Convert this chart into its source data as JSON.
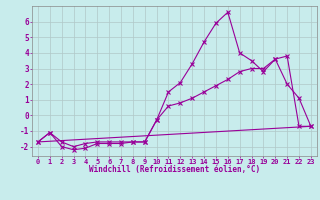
{
  "xlabel": "Windchill (Refroidissement éolien,°C)",
  "background_color": "#c8ecec",
  "grid_color": "#b0c8c8",
  "line_color": "#990099",
  "spine_color": "#888888",
  "x_ticks": [
    0,
    1,
    2,
    3,
    4,
    5,
    6,
    7,
    8,
    9,
    10,
    11,
    12,
    13,
    14,
    15,
    16,
    17,
    18,
    19,
    20,
    21,
    22,
    23
  ],
  "y_ticks": [
    -2,
    -1,
    0,
    1,
    2,
    3,
    4,
    5,
    6
  ],
  "xlim": [
    -0.5,
    23.5
  ],
  "ylim": [
    -2.6,
    7.0
  ],
  "line1_x": [
    0,
    1,
    2,
    3,
    4,
    5,
    6,
    7,
    8,
    9,
    10,
    11,
    12,
    13,
    14,
    15,
    16,
    17,
    18,
    19,
    20,
    21,
    22,
    23
  ],
  "line1_y": [
    -1.7,
    -1.1,
    -2.0,
    -2.2,
    -2.1,
    -1.8,
    -1.8,
    -1.8,
    -1.7,
    -1.7,
    -0.3,
    1.5,
    2.1,
    3.3,
    4.7,
    5.9,
    6.6,
    4.0,
    3.5,
    2.8,
    3.6,
    2.0,
    1.1,
    -0.7
  ],
  "line2_x": [
    0,
    1,
    2,
    3,
    4,
    5,
    6,
    7,
    8,
    9,
    10,
    11,
    12,
    13,
    14,
    15,
    16,
    17,
    18,
    19,
    20,
    21,
    22,
    23
  ],
  "line2_y": [
    -1.7,
    -1.1,
    -1.7,
    -2.0,
    -1.8,
    -1.7,
    -1.7,
    -1.7,
    -1.7,
    -1.7,
    -0.3,
    0.6,
    0.8,
    1.1,
    1.5,
    1.9,
    2.3,
    2.8,
    3.0,
    3.0,
    3.6,
    3.8,
    -0.7,
    -0.7
  ],
  "line3_x": [
    0,
    23
  ],
  "line3_y": [
    -1.7,
    -0.7
  ],
  "tick_fontsize": 5.0,
  "xlabel_fontsize": 5.5,
  "figsize": [
    3.2,
    2.0
  ],
  "dpi": 100
}
